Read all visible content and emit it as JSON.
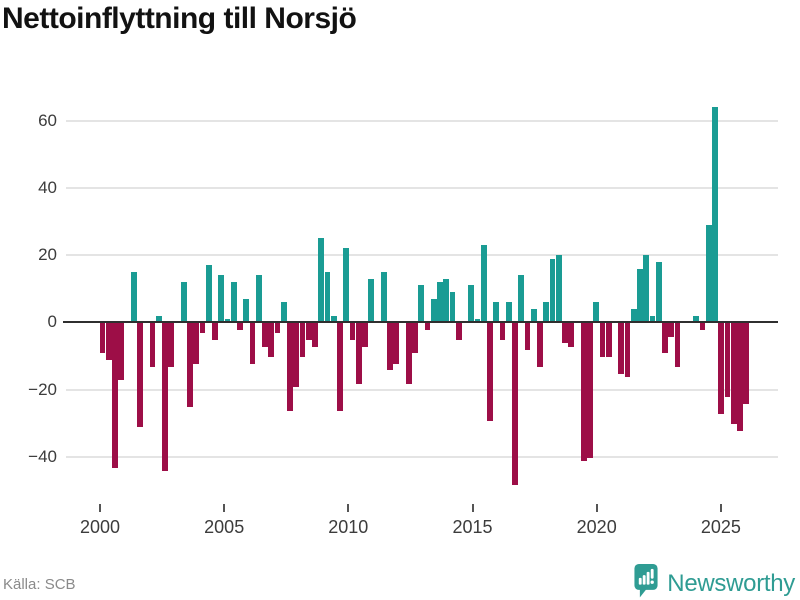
{
  "title": "Nettoinflyttning till Norsjö",
  "source": "Källa: SCB",
  "logo": {
    "text": "Newsworthy"
  },
  "colors": {
    "positive": "#1a9c94",
    "negative": "#9d0e47",
    "grid": "#e4e4e4",
    "zero_line": "#2f2f2f",
    "axis_text": "#3c3c3c",
    "title_text": "#121212",
    "source_text": "#8a8a8a",
    "logo_teal": "#2f9c93",
    "background": "#ffffff"
  },
  "chart_data": {
    "type": "bar",
    "title": "Nettoinflyttning till Norsjö",
    "frequency": "quarterly",
    "start": "2000Q1",
    "end": "2025Q4",
    "values": [
      -9,
      -11,
      -43,
      -17,
      0,
      15,
      -31,
      0,
      -13,
      2,
      -44,
      -13,
      0,
      12,
      -25,
      -12,
      -3,
      17,
      -5,
      14,
      1,
      12,
      -2,
      7,
      -12,
      14,
      -7,
      -10,
      -3,
      6,
      -26,
      -19,
      -10,
      -5,
      -7,
      25,
      15,
      2,
      -26,
      22,
      -5,
      -18,
      -7,
      13,
      0,
      15,
      -14,
      -12,
      0,
      -18,
      -9,
      11,
      -2,
      7,
      12,
      13,
      9,
      -5,
      0,
      11,
      1,
      23,
      -29,
      6,
      -5,
      6,
      -48,
      14,
      -8,
      4,
      -13,
      6,
      19,
      20,
      -6,
      -7,
      0,
      -41,
      -40,
      6,
      -10,
      -10,
      0,
      -15,
      -16,
      4,
      16,
      20,
      2,
      18,
      -9,
      -4,
      -13,
      0,
      0,
      2,
      -2,
      29,
      64,
      -27,
      -22,
      -30,
      -32,
      -24
    ],
    "x_ticks": [
      2000,
      2005,
      2010,
      2015,
      2020,
      2025
    ],
    "y_ticks": [
      60,
      40,
      20,
      0,
      -20,
      -40
    ],
    "ylim": [
      -50,
      70
    ],
    "grid": true,
    "legend": false
  }
}
